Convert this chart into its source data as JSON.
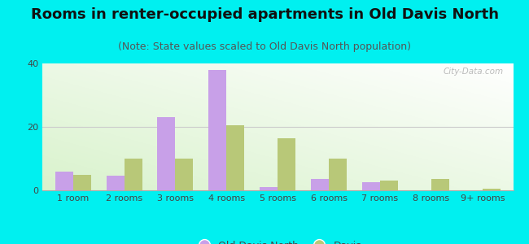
{
  "title": "Rooms in renter-occupied apartments in Old Davis North",
  "subtitle": "(Note: State values scaled to Old Davis North population)",
  "categories": [
    "1 room",
    "2 rooms",
    "3 rooms",
    "4 rooms",
    "5 rooms",
    "6 rooms",
    "7 rooms",
    "8 rooms",
    "9+ rooms"
  ],
  "old_davis_north": [
    6,
    4.5,
    23,
    38,
    1,
    3.5,
    2.5,
    0,
    0
  ],
  "davis": [
    5,
    10,
    10,
    20.5,
    16.5,
    10,
    3,
    3.5,
    0.5
  ],
  "color_old_davis": "#c8a0e8",
  "color_davis": "#b8c878",
  "ylim": [
    0,
    40
  ],
  "yticks": [
    0,
    20,
    40
  ],
  "background_color": "#00f0f0",
  "bar_width": 0.35,
  "title_fontsize": 13,
  "subtitle_fontsize": 9,
  "tick_fontsize": 8,
  "legend_fontsize": 9
}
